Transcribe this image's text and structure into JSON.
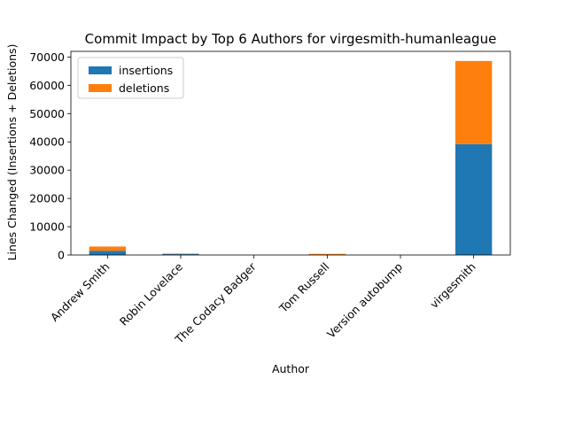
{
  "chart_data": {
    "type": "bar",
    "stacked": true,
    "title": "Commit Impact by Top 6 Authors for virgesmith-humanleague",
    "xlabel": "Author",
    "ylabel": "Lines Changed (Insertions + Deletions)",
    "categories": [
      "Andrew Smith",
      "Robin Lovelace",
      "The Codacy Badger",
      "Tom Russell",
      "Version autobump",
      "virgesmith"
    ],
    "series": [
      {
        "name": "insertions",
        "color": "#1f77b4",
        "values": [
          1500,
          300,
          2,
          100,
          1,
          39200
        ]
      },
      {
        "name": "deletions",
        "color": "#ff7f0e",
        "values": [
          1500,
          200,
          1,
          300,
          1,
          29400
        ]
      }
    ],
    "ylim": [
      0,
      72000
    ],
    "yticks": [
      0,
      10000,
      20000,
      30000,
      40000,
      50000,
      60000,
      70000
    ],
    "ytick_labels": [
      "0",
      "10000",
      "20000",
      "30000",
      "40000",
      "50000",
      "60000",
      "70000"
    ],
    "legend_position": "top-left",
    "grid": false
  }
}
